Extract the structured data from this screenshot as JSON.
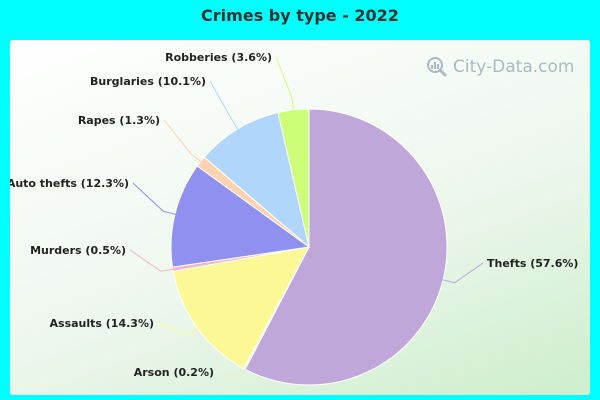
{
  "title": "Crimes by type - 2022",
  "watermark": {
    "text": "City-Data.com",
    "icon": "magnifier-bar-chart-icon"
  },
  "chart_data": {
    "type": "pie",
    "title": "Crimes by type - 2022",
    "slices": [
      {
        "name": "Thefts",
        "label": "Thefts (57.6%)",
        "value": 57.6,
        "color": "#bfa8d9"
      },
      {
        "name": "Arson",
        "label": "Arson (0.2%)",
        "value": 0.2,
        "color": "#e8f1c4"
      },
      {
        "name": "Assaults",
        "label": "Assaults (14.3%)",
        "value": 14.3,
        "color": "#fdf896"
      },
      {
        "name": "Murders",
        "label": "Murders (0.5%)",
        "value": 0.5,
        "color": "#f2b8c6"
      },
      {
        "name": "Auto thefts",
        "label": "Auto thefts (12.3%)",
        "value": 12.3,
        "color": "#9090f0"
      },
      {
        "name": "Rapes",
        "label": "Rapes (1.3%)",
        "value": 1.3,
        "color": "#ffd3b0"
      },
      {
        "name": "Burglaries",
        "label": "Burglaries (10.1%)",
        "value": 10.1,
        "color": "#b0d6fb"
      },
      {
        "name": "Robberies",
        "label": "Robberies (3.6%)",
        "value": 3.6,
        "color": "#ccff77"
      }
    ]
  }
}
